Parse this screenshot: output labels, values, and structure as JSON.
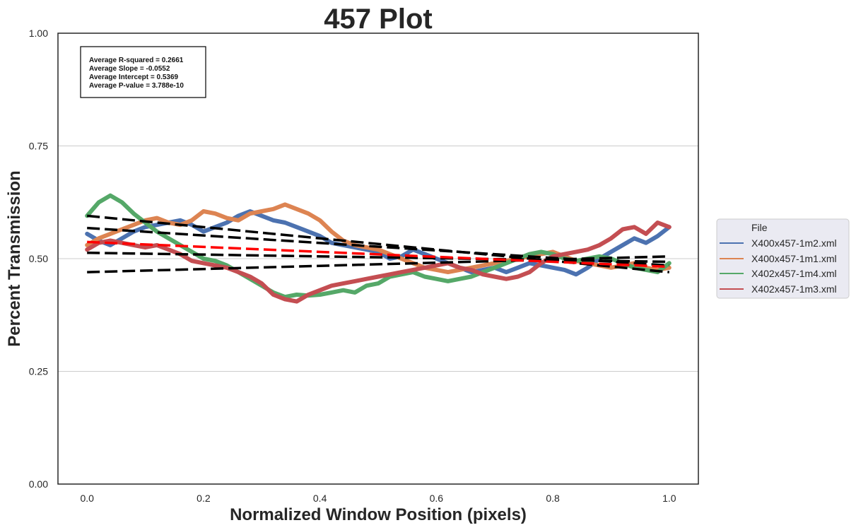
{
  "chart_data": {
    "type": "line",
    "title": "457 Plot",
    "xlabel": "Normalized Window Position (pixels)",
    "ylabel": "Percent Transmission",
    "xlim": [
      -0.05,
      1.05
    ],
    "ylim": [
      0.0,
      1.0
    ],
    "xticks": [
      0.0,
      0.2,
      0.4,
      0.6,
      0.8,
      1.0
    ],
    "xtick_labels": [
      "0.0",
      "0.2",
      "0.4",
      "0.6",
      "0.8",
      "1.0"
    ],
    "yticks": [
      0.0,
      0.25,
      0.5,
      0.75,
      1.0
    ],
    "ytick_labels": [
      "0.00",
      "0.25",
      "0.50",
      "0.75",
      "1.00"
    ],
    "grid": "horizontal",
    "legend": {
      "title": "File",
      "placement": "right, outside plot",
      "entries": [
        "X400x457-1m2.xml",
        "X400x457-1m1.xml",
        "X402x457-1m4.xml",
        "X402x457-1m3.xml"
      ]
    },
    "stats_box": [
      "Average R-squared = 0.2661",
      "Average Slope = -0.0552",
      "Average Intercept = 0.5369",
      "Average P-value = 3.788e-10"
    ],
    "series": [
      {
        "name": "X400x457-1m2.xml",
        "color": "#4c72b0",
        "x": [
          0.0,
          0.02,
          0.04,
          0.06,
          0.08,
          0.1,
          0.12,
          0.14,
          0.16,
          0.18,
          0.2,
          0.22,
          0.24,
          0.26,
          0.28,
          0.3,
          0.32,
          0.34,
          0.36,
          0.38,
          0.4,
          0.42,
          0.44,
          0.46,
          0.48,
          0.5,
          0.52,
          0.54,
          0.56,
          0.58,
          0.6,
          0.62,
          0.64,
          0.66,
          0.68,
          0.7,
          0.72,
          0.74,
          0.76,
          0.78,
          0.8,
          0.82,
          0.84,
          0.86,
          0.88,
          0.9,
          0.92,
          0.94,
          0.96,
          0.98,
          1.0
        ],
        "y": [
          0.555,
          0.54,
          0.53,
          0.545,
          0.56,
          0.57,
          0.575,
          0.58,
          0.585,
          0.575,
          0.56,
          0.57,
          0.58,
          0.595,
          0.605,
          0.595,
          0.585,
          0.58,
          0.57,
          0.56,
          0.55,
          0.535,
          0.53,
          0.525,
          0.52,
          0.515,
          0.5,
          0.505,
          0.52,
          0.51,
          0.5,
          0.49,
          0.48,
          0.47,
          0.475,
          0.48,
          0.47,
          0.48,
          0.49,
          0.485,
          0.48,
          0.475,
          0.465,
          0.48,
          0.5,
          0.515,
          0.53,
          0.545,
          0.535,
          0.55,
          0.57
        ]
      },
      {
        "name": "X400x457-1m1.xml",
        "color": "#dd8452",
        "x": [
          0.0,
          0.02,
          0.04,
          0.06,
          0.08,
          0.1,
          0.12,
          0.14,
          0.16,
          0.18,
          0.2,
          0.22,
          0.24,
          0.26,
          0.28,
          0.3,
          0.32,
          0.34,
          0.36,
          0.38,
          0.4,
          0.42,
          0.44,
          0.46,
          0.48,
          0.5,
          0.52,
          0.54,
          0.56,
          0.58,
          0.6,
          0.62,
          0.64,
          0.66,
          0.68,
          0.7,
          0.72,
          0.74,
          0.76,
          0.78,
          0.8,
          0.82,
          0.84,
          0.86,
          0.88,
          0.9,
          0.92,
          0.94,
          0.96,
          0.98,
          1.0
        ],
        "y": [
          0.53,
          0.545,
          0.555,
          0.565,
          0.575,
          0.585,
          0.59,
          0.58,
          0.575,
          0.585,
          0.605,
          0.6,
          0.59,
          0.585,
          0.6,
          0.605,
          0.61,
          0.62,
          0.61,
          0.6,
          0.585,
          0.56,
          0.54,
          0.53,
          0.525,
          0.52,
          0.51,
          0.5,
          0.49,
          0.48,
          0.475,
          0.47,
          0.475,
          0.48,
          0.485,
          0.49,
          0.495,
          0.5,
          0.505,
          0.51,
          0.515,
          0.505,
          0.495,
          0.49,
          0.485,
          0.48,
          0.485,
          0.49,
          0.48,
          0.475,
          0.48
        ]
      },
      {
        "name": "X402x457-1m4.xml",
        "color": "#55a868",
        "x": [
          0.0,
          0.02,
          0.04,
          0.06,
          0.08,
          0.1,
          0.12,
          0.14,
          0.16,
          0.18,
          0.2,
          0.22,
          0.24,
          0.26,
          0.28,
          0.3,
          0.32,
          0.34,
          0.36,
          0.38,
          0.4,
          0.42,
          0.44,
          0.46,
          0.48,
          0.5,
          0.52,
          0.54,
          0.56,
          0.58,
          0.6,
          0.62,
          0.64,
          0.66,
          0.68,
          0.7,
          0.72,
          0.74,
          0.76,
          0.78,
          0.8,
          0.82,
          0.84,
          0.86,
          0.88,
          0.9,
          0.92,
          0.94,
          0.96,
          0.98,
          1.0
        ],
        "y": [
          0.595,
          0.625,
          0.64,
          0.625,
          0.6,
          0.58,
          0.56,
          0.545,
          0.53,
          0.515,
          0.5,
          0.495,
          0.485,
          0.47,
          0.455,
          0.44,
          0.425,
          0.415,
          0.42,
          0.418,
          0.42,
          0.425,
          0.43,
          0.425,
          0.44,
          0.445,
          0.46,
          0.465,
          0.47,
          0.46,
          0.455,
          0.45,
          0.455,
          0.46,
          0.47,
          0.48,
          0.49,
          0.5,
          0.51,
          0.515,
          0.51,
          0.5,
          0.495,
          0.5,
          0.505,
          0.5,
          0.49,
          0.48,
          0.475,
          0.47,
          0.49
        ]
      },
      {
        "name": "X402x457-1m3.xml",
        "color": "#c44e52",
        "x": [
          0.0,
          0.02,
          0.04,
          0.06,
          0.08,
          0.1,
          0.12,
          0.14,
          0.16,
          0.18,
          0.2,
          0.22,
          0.24,
          0.26,
          0.28,
          0.3,
          0.32,
          0.34,
          0.36,
          0.38,
          0.4,
          0.42,
          0.44,
          0.46,
          0.48,
          0.5,
          0.52,
          0.54,
          0.56,
          0.58,
          0.6,
          0.62,
          0.64,
          0.66,
          0.68,
          0.7,
          0.72,
          0.74,
          0.76,
          0.78,
          0.8,
          0.82,
          0.84,
          0.86,
          0.88,
          0.9,
          0.92,
          0.94,
          0.96,
          0.98,
          1.0
        ],
        "y": [
          0.52,
          0.535,
          0.54,
          0.535,
          0.53,
          0.525,
          0.53,
          0.52,
          0.51,
          0.495,
          0.49,
          0.485,
          0.48,
          0.47,
          0.46,
          0.445,
          0.42,
          0.41,
          0.405,
          0.42,
          0.43,
          0.44,
          0.445,
          0.45,
          0.455,
          0.46,
          0.465,
          0.47,
          0.475,
          0.48,
          0.485,
          0.49,
          0.48,
          0.475,
          0.465,
          0.46,
          0.455,
          0.46,
          0.47,
          0.49,
          0.505,
          0.51,
          0.515,
          0.52,
          0.53,
          0.545,
          0.565,
          0.57,
          0.555,
          0.58,
          0.57
        ]
      }
    ],
    "fit_lines": [
      {
        "style": "black dashed",
        "x": [
          0.0,
          1.0
        ],
        "y": [
          0.595,
          0.47
        ]
      },
      {
        "style": "black dashed",
        "x": [
          0.0,
          1.0
        ],
        "y": [
          0.568,
          0.485
        ]
      },
      {
        "style": "black dashed",
        "x": [
          0.0,
          1.0
        ],
        "y": [
          0.513,
          0.493
        ]
      },
      {
        "style": "black dashed",
        "x": [
          0.0,
          1.0
        ],
        "y": [
          0.47,
          0.505
        ]
      },
      {
        "style": "red dashed (average)",
        "x": [
          0.0,
          1.0
        ],
        "y": [
          0.537,
          0.482
        ]
      }
    ]
  }
}
